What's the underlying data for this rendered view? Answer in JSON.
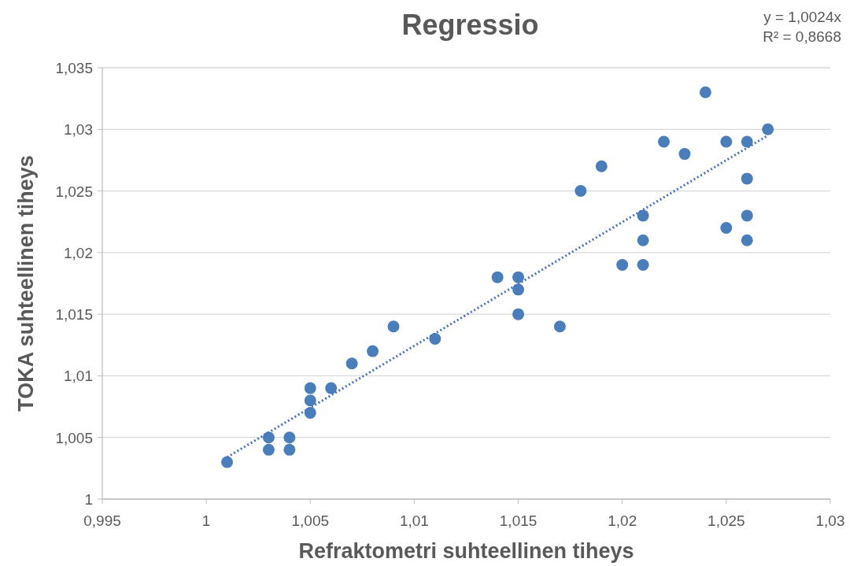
{
  "chart_data": {
    "type": "scatter",
    "title": "Regressio",
    "xlabel": "Refraktometri suhteellinen tiheys",
    "ylabel": "TOKA suhteellinen tiheys",
    "annotations": [
      "y = 1,0024x",
      "R² = 0,8668"
    ],
    "xlim": [
      0.995,
      1.03
    ],
    "ylim": [
      1,
      1.035
    ],
    "xticks": [
      {
        "value": 0.995,
        "label": "0,995"
      },
      1,
      {
        "value": 1.005,
        "label": "1,005"
      },
      {
        "value": 1.01,
        "label": "1,01"
      },
      {
        "value": 1.015,
        "label": "1,015"
      },
      {
        "value": 1.02,
        "label": "1,02"
      },
      {
        "value": 1.025,
        "label": "1,025"
      },
      {
        "value": 1.03,
        "label": "1,03"
      }
    ],
    "yticks": [
      1,
      {
        "value": 1.005,
        "label": "1,005"
      },
      {
        "value": 1.01,
        "label": "1,01"
      },
      {
        "value": 1.015,
        "label": "1,015"
      },
      {
        "value": 1.02,
        "label": "1,02"
      },
      {
        "value": 1.025,
        "label": "1,025"
      },
      {
        "value": 1.03,
        "label": "1,03"
      },
      {
        "value": 1.035,
        "label": "1,035"
      }
    ],
    "grid": "y",
    "marker": "circle",
    "series": [
      {
        "color": "#4a7ebb",
        "x": [
          1.001,
          1.003,
          1.003,
          1.004,
          1.004,
          1.005,
          1.005,
          1.005,
          1.006,
          1.007,
          1.008,
          1.009,
          1.011,
          1.014,
          1.015,
          1.015,
          1.015,
          1.017,
          1.018,
          1.019,
          1.02,
          1.021,
          1.021,
          1.021,
          1.022,
          1.023,
          1.024,
          1.025,
          1.025,
          1.026,
          1.026,
          1.026,
          1.026,
          1.027
        ],
        "values": [
          1.003,
          1.005,
          1.004,
          1.005,
          1.004,
          1.009,
          1.008,
          1.007,
          1.009,
          1.011,
          1.012,
          1.014,
          1.013,
          1.018,
          1.018,
          1.017,
          1.015,
          1.014,
          1.025,
          1.027,
          1.019,
          1.023,
          1.021,
          1.019,
          1.029,
          1.028,
          1.033,
          1.029,
          1.022,
          1.029,
          1.026,
          1.023,
          1.021,
          1.03
        ]
      },
      {
        "type": "line",
        "color": "#4472c4",
        "line_style": "dotted",
        "marker": "none",
        "x": [
          1.001,
          1.027
        ],
        "values": [
          1.0034,
          1.0295
        ]
      }
    ]
  }
}
